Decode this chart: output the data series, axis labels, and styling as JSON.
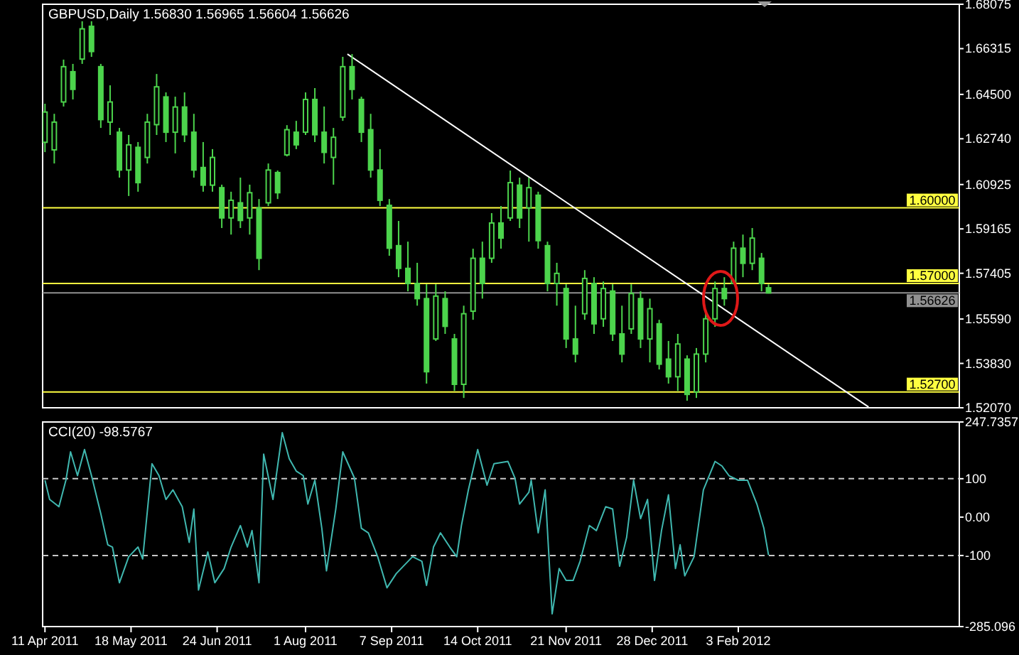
{
  "chart_data": [
    {
      "type": "candlestick",
      "title": "GBPUSD,Daily  1.56830 1.56965 1.56604 1.56626",
      "color": "#4cd44c",
      "tick_labels": "y",
      "xlim": [
        "2011-04-10",
        "2012-05-08"
      ],
      "ylim": [
        1.5207,
        1.68075
      ],
      "yticks": [
        1.68075,
        1.66315,
        {
          "value": 1.645,
          "label": "1.64500"
        },
        {
          "value": 1.6274,
          "label": "1.62740"
        },
        1.60925,
        1.59165,
        1.57405,
        {
          "value": 1.5559,
          "label": "1.55590"
        },
        {
          "value": 1.5383,
          "label": "1.53830"
        },
        {
          "value": 1.5207,
          "label": "1.52070"
        }
      ],
      "x": [
        "2011-04-11",
        "2011-04-15",
        "2011-04-19",
        "2011-04-23",
        "2011-04-27",
        "2011-05-01",
        "2011-05-05",
        "2011-05-09",
        "2011-05-13",
        "2011-05-17",
        "2011-05-21",
        "2011-05-25",
        "2011-05-29",
        "2011-06-02",
        "2011-06-06",
        "2011-06-10",
        "2011-06-14",
        "2011-06-18",
        "2011-06-22",
        "2011-06-26",
        "2011-06-30",
        "2011-07-04",
        "2011-07-08",
        "2011-07-12",
        "2011-07-16",
        "2011-07-20",
        "2011-07-24",
        "2011-07-28",
        "2011-08-01",
        "2011-08-05",
        "2011-08-09",
        "2011-08-13",
        "2011-08-17",
        "2011-08-21",
        "2011-08-25",
        "2011-08-29",
        "2011-09-02",
        "2011-09-06",
        "2011-09-10",
        "2011-09-14",
        "2011-09-18",
        "2011-09-22",
        "2011-09-26",
        "2011-09-30",
        "2011-10-04",
        "2011-10-08",
        "2011-10-12",
        "2011-10-16",
        "2011-10-20",
        "2011-10-24",
        "2011-10-28",
        "2011-11-01",
        "2011-11-05",
        "2011-11-09",
        "2011-11-13",
        "2011-11-17",
        "2011-11-21",
        "2011-11-25",
        "2011-11-29",
        "2011-12-03",
        "2011-12-07",
        "2011-12-11",
        "2011-12-15",
        "2011-12-19",
        "2011-12-23",
        "2011-12-27",
        "2011-12-31",
        "2012-01-04",
        "2012-01-08",
        "2012-01-12",
        "2012-01-16",
        "2012-01-20",
        "2012-01-24",
        "2012-01-28",
        "2012-02-01",
        "2012-02-05",
        "2012-02-09",
        "2012-02-13",
        "2012-02-16"
      ],
      "ohlc": [
        [
          1.626,
          1.6413,
          1.6221,
          1.638
        ],
        [
          1.623,
          1.6373,
          1.6176,
          1.634
        ],
        [
          1.642,
          1.6588,
          1.6402,
          1.656
        ],
        [
          1.654,
          1.6571,
          1.643,
          1.647
        ],
        [
          1.659,
          1.674,
          1.6571,
          1.671
        ],
        [
          1.672,
          1.674,
          1.6599,
          1.662
        ],
        [
          1.656,
          1.6571,
          1.6317,
          1.635
        ],
        [
          1.634,
          1.6486,
          1.6289,
          1.642
        ],
        [
          1.63,
          1.6317,
          1.612,
          1.615
        ],
        [
          1.615,
          1.6289,
          1.6047,
          1.625
        ],
        [
          1.624,
          1.6261,
          1.6064,
          1.61
        ],
        [
          1.62,
          1.6373,
          1.6176,
          1.634
        ],
        [
          1.633,
          1.6531,
          1.6289,
          1.648
        ],
        [
          1.644,
          1.6458,
          1.6261,
          1.63
        ],
        [
          1.63,
          1.6441,
          1.6216,
          1.64
        ],
        [
          1.64,
          1.6458,
          1.6261,
          1.629
        ],
        [
          1.63,
          1.6373,
          1.612,
          1.615
        ],
        [
          1.616,
          1.6261,
          1.6064,
          1.609
        ],
        [
          1.609,
          1.6233,
          1.6064,
          1.62
        ],
        [
          1.608,
          1.6092,
          1.592,
          1.596
        ],
        [
          1.596,
          1.6064,
          1.5894,
          1.603
        ],
        [
          1.602,
          1.612,
          1.592,
          1.595
        ],
        [
          1.596,
          1.6092,
          1.5894,
          1.606
        ],
        [
          1.6,
          1.6035,
          1.5753,
          1.58
        ],
        [
          1.602,
          1.6176,
          1.6007,
          1.615
        ],
        [
          1.614,
          1.6148,
          1.6035,
          1.606
        ],
        [
          1.621,
          1.6328,
          1.6204,
          1.631
        ],
        [
          1.63,
          1.6345,
          1.6233,
          1.625
        ],
        [
          1.63,
          1.6458,
          1.6289,
          1.643
        ],
        [
          1.643,
          1.6475,
          1.6261,
          1.629
        ],
        [
          1.63,
          1.6402,
          1.6176,
          1.622
        ],
        [
          1.62,
          1.6317,
          1.6092,
          1.628
        ],
        [
          1.636,
          1.6599,
          1.6345,
          1.656
        ],
        [
          1.656,
          1.661,
          1.643,
          1.647
        ],
        [
          1.643,
          1.6441,
          1.6261,
          1.63
        ],
        [
          1.631,
          1.6373,
          1.612,
          1.615
        ],
        [
          1.615,
          1.6233,
          1.6007,
          1.603
        ],
        [
          1.601,
          1.6035,
          1.581,
          1.584
        ],
        [
          1.585,
          1.5948,
          1.5725,
          1.576
        ],
        [
          1.576,
          1.5866,
          1.5669,
          1.57
        ],
        [
          1.57,
          1.5782,
          1.5612,
          1.564
        ],
        [
          1.564,
          1.5697,
          1.5303,
          1.535
        ],
        [
          1.548,
          1.5697,
          1.5472,
          1.565
        ],
        [
          1.564,
          1.5669,
          1.55,
          1.553
        ],
        [
          1.548,
          1.55,
          1.5274,
          1.53
        ],
        [
          1.53,
          1.5612,
          1.5246,
          1.558
        ],
        [
          1.559,
          1.5838,
          1.5556,
          1.58
        ],
        [
          1.58,
          1.5866,
          1.564,
          1.57
        ],
        [
          1.58,
          1.5979,
          1.5782,
          1.594
        ],
        [
          1.594,
          1.6007,
          1.5838,
          1.588
        ],
        [
          1.596,
          1.6148,
          1.5948,
          1.61
        ],
        [
          1.609,
          1.612,
          1.592,
          1.596
        ],
        [
          1.6,
          1.612,
          1.5866,
          1.608
        ],
        [
          1.605,
          1.6064,
          1.5838,
          1.587
        ],
        [
          1.585,
          1.5866,
          1.5669,
          1.57
        ],
        [
          1.57,
          1.5782,
          1.5612,
          1.574
        ],
        [
          1.568,
          1.5697,
          1.5444,
          1.548
        ],
        [
          1.548,
          1.5612,
          1.5387,
          1.542
        ],
        [
          1.558,
          1.5753,
          1.5556,
          1.572
        ],
        [
          1.57,
          1.5725,
          1.55,
          1.554
        ],
        [
          1.556,
          1.5708,
          1.5528,
          1.568
        ],
        [
          1.567,
          1.5697,
          1.5472,
          1.55
        ],
        [
          1.55,
          1.5612,
          1.5387,
          1.542
        ],
        [
          1.552,
          1.5697,
          1.55,
          1.566
        ],
        [
          1.564,
          1.5669,
          1.5444,
          1.548
        ],
        [
          1.548,
          1.564,
          1.5387,
          1.56
        ],
        [
          1.554,
          1.5556,
          1.5359,
          1.538
        ],
        [
          1.54,
          1.5472,
          1.5303,
          1.533
        ],
        [
          1.533,
          1.55,
          1.5274,
          1.546
        ],
        [
          1.54,
          1.5415,
          1.5235,
          1.526
        ],
        [
          1.527,
          1.5444,
          1.5246,
          1.542
        ],
        [
          1.542,
          1.5584,
          1.5387,
          1.556
        ],
        [
          1.556,
          1.5708,
          1.5528,
          1.568
        ],
        [
          1.568,
          1.5725,
          1.5612,
          1.564
        ],
        [
          1.57,
          1.5866,
          1.5697,
          1.584
        ],
        [
          1.584,
          1.5894,
          1.5725,
          1.578
        ],
        [
          1.578,
          1.592,
          1.5753,
          1.588
        ],
        [
          1.58,
          1.5821,
          1.5669,
          1.57
        ],
        [
          1.5683,
          1.56965,
          1.56604,
          1.56626
        ]
      ],
      "series": [
        {
          "type": "line",
          "color": "#ffffff",
          "x": [
            "2011-08-19",
            "2012-03-30"
          ],
          "values": [
            1.661,
            1.521
          ]
        }
      ],
      "ref_lines": [
        {
          "axis": "y",
          "value": 1.6,
          "label": "1.60000",
          "color": "#ffff40"
        },
        {
          "axis": "y",
          "value": 1.57,
          "label": "1.57000",
          "color": "#ffff40"
        },
        {
          "axis": "y",
          "value": 1.527,
          "label": "1.52700",
          "color": "#ffff40"
        },
        {
          "axis": "y",
          "value": 1.56626,
          "label": "1.56626",
          "color": "#909090"
        }
      ]
    },
    {
      "type": "line",
      "title": "CCI(20) -98.5767",
      "xlim": [
        "2011-04-10",
        "2012-05-08"
      ],
      "ylim": [
        -285.096,
        247.7357
      ],
      "yticks": [
        247.7357,
        100,
        {
          "value": 0,
          "label": "0.00"
        },
        -100,
        -285.096
      ],
      "xticks": [
        {
          "value": "2011-04-11",
          "label": "11 Apr 2011"
        },
        {
          "value": "2011-05-18",
          "label": "18 May 2011"
        },
        {
          "value": "2011-06-24",
          "label": "24 Jun 2011"
        },
        {
          "value": "2011-08-01",
          "label": "1 Aug 2011"
        },
        {
          "value": "2011-09-07",
          "label": "7 Sep 2011"
        },
        {
          "value": "2011-10-14",
          "label": "14 Oct 2011"
        },
        {
          "value": "2011-11-21",
          "label": "21 Nov 2011"
        },
        {
          "value": "2011-12-28",
          "label": "28 Dec 2011"
        },
        {
          "value": "2012-02-03",
          "label": "3 Feb 2012"
        }
      ],
      "ref_lines": [
        {
          "axis": "y",
          "value": 100,
          "color": "#c8c8c8",
          "line_style": "dashed"
        },
        {
          "axis": "y",
          "value": -100,
          "color": "#c8c8c8",
          "line_style": "dashed"
        }
      ],
      "series": [
        {
          "color": "#40b8b0",
          "x": [
            "2011-04-11",
            "2011-04-13",
            "2011-04-17",
            "2011-04-20",
            "2011-04-22",
            "2011-04-25",
            "2011-04-28",
            "2011-05-01",
            "2011-05-05",
            "2011-05-08",
            "2011-05-10",
            "2011-05-13",
            "2011-05-17",
            "2011-05-21",
            "2011-05-23",
            "2011-05-27",
            "2011-05-30",
            "2011-06-02",
            "2011-06-05",
            "2011-06-09",
            "2011-06-12",
            "2011-06-14",
            "2011-06-16",
            "2011-06-20",
            "2011-06-23",
            "2011-06-27",
            "2011-06-30",
            "2011-07-04",
            "2011-07-07",
            "2011-07-09",
            "2011-07-12",
            "2011-07-14",
            "2011-07-18",
            "2011-07-22",
            "2011-07-25",
            "2011-07-28",
            "2011-07-31",
            "2011-08-02",
            "2011-08-05",
            "2011-08-08",
            "2011-08-10",
            "2011-08-14",
            "2011-08-17",
            "2011-08-22",
            "2011-08-25",
            "2011-08-28",
            "2011-09-01",
            "2011-09-05",
            "2011-09-09",
            "2011-09-12",
            "2011-09-16",
            "2011-09-20",
            "2011-09-22",
            "2011-09-25",
            "2011-09-28",
            "2011-10-02",
            "2011-10-05",
            "2011-10-07",
            "2011-10-10",
            "2011-10-14",
            "2011-10-18",
            "2011-10-21",
            "2011-10-27",
            "2011-10-30",
            "2011-11-01",
            "2011-11-05",
            "2011-11-06",
            "2011-11-09",
            "2011-11-12",
            "2011-11-15",
            "2011-11-18",
            "2011-11-21",
            "2011-11-24",
            "2011-11-27",
            "2011-12-01",
            "2011-12-04",
            "2011-12-08",
            "2011-12-11",
            "2011-12-14",
            "2011-12-17",
            "2011-12-20",
            "2011-12-23",
            "2011-12-26",
            "2011-12-29",
            "2012-01-01",
            "2012-01-04",
            "2012-01-07",
            "2012-01-09",
            "2012-01-11",
            "2012-01-15",
            "2012-01-19",
            "2012-01-24",
            "2012-01-27",
            "2012-01-30",
            "2012-02-03",
            "2012-02-07",
            "2012-02-11",
            "2012-02-14",
            "2012-02-16"
          ],
          "values": [
            96,
            46,
            27,
            96,
            170,
            108,
            176,
            108,
            9,
            -72,
            -78,
            -171,
            -103,
            -78,
            -109,
            139,
            108,
            46,
            71,
            27,
            -66,
            21,
            -190,
            -91,
            -171,
            -134,
            -78,
            -22,
            -78,
            -35,
            -171,
            164,
            46,
            220,
            152,
            120,
            108,
            34,
            96,
            -29,
            -140,
            21,
            170,
            102,
            -29,
            -41,
            -103,
            -184,
            -147,
            -128,
            -103,
            -115,
            -178,
            -78,
            -41,
            -78,
            -103,
            -22,
            71,
            176,
            83,
            139,
            145,
            102,
            34,
            65,
            96,
            -41,
            71,
            -252,
            -134,
            -165,
            -165,
            -115,
            -22,
            -35,
            27,
            21,
            -128,
            -53,
            96,
            -4,
            46,
            -165,
            -35,
            58,
            -134,
            -72,
            -153,
            -103,
            71,
            145,
            133,
            108,
            96,
            96,
            34,
            -29,
            -99
          ]
        }
      ]
    }
  ]
}
